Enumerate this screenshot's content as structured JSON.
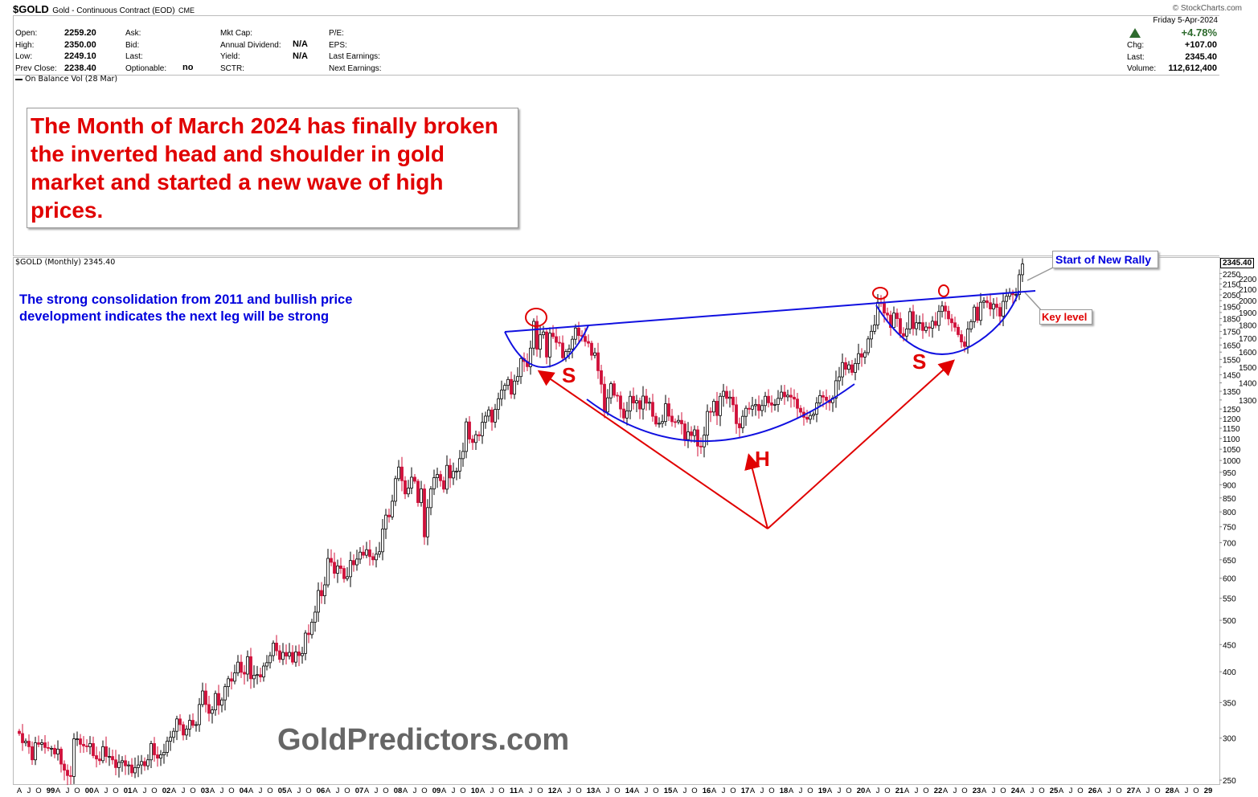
{
  "header": {
    "symbol": "$GOLD",
    "name": "Gold - Continuous Contract (EOD)",
    "exchange": "CME",
    "copyright": "© StockCharts.com",
    "open_label": "Open:",
    "open": "2259.20",
    "high_label": "High:",
    "high": "2350.00",
    "low_label": "Low:",
    "low": "2249.10",
    "prev_label": "Prev Close:",
    "prev": "2238.40",
    "ask_label": "Ask:",
    "bid_label": "Bid:",
    "last_label2": "Last:",
    "optionable_label": "Optionable:",
    "optionable": "no",
    "mktcap_label": "Mkt Cap:",
    "div_label": "Annual Dividend:",
    "div": "N/A",
    "yield_label": "Yield:",
    "yield": "N/A",
    "sctr_label": "SCTR:",
    "pe_label": "P/E:",
    "eps_label": "EPS:",
    "lastearn_label": "Last Earnings:",
    "nextearn_label": "Next Earnings:",
    "date": "Friday  5-Apr-2024",
    "pct": "+4.78%",
    "chg_label": "Chg:",
    "chg": "+107.00",
    "last_label": "Last:",
    "last": "2345.40",
    "vol_label": "Volume:",
    "volume": "112,612,400",
    "obv": "On Balance Vol (28 Mar)",
    "up_color": "#2e6b2e"
  },
  "annotations": {
    "headline": "The Month of March 2024 has finally broken the inverted head and shoulder in gold market and started a new wave of high prices.",
    "note": "The strong consolidation from 2011 and bullish price development indicates the next leg will be strong",
    "rally": "Start of New Rally",
    "key": "Key level",
    "s1": "S",
    "h": "H",
    "s2": "S",
    "watermark": "GoldPredictors.com"
  },
  "chart_data": {
    "type": "candlestick",
    "title": "$GOLD (Monthly) 2345.40",
    "last_label": "2345.40",
    "yscale": "log",
    "ylim": [
      250,
      2400
    ],
    "yticks": [
      250,
      300,
      350,
      400,
      450,
      500,
      550,
      600,
      650,
      700,
      750,
      800,
      850,
      900,
      950,
      1000,
      1050,
      1100,
      1150,
      1200,
      1250,
      1300,
      1350,
      1400,
      1450,
      1500,
      1550,
      1600,
      1650,
      1700,
      1750,
      1800,
      1850,
      1900,
      1950,
      2000,
      2050,
      2100,
      2150,
      2200,
      2250
    ],
    "xlabels_years": [
      "99",
      "00",
      "01",
      "02",
      "03",
      "04",
      "05",
      "06",
      "07",
      "08",
      "09",
      "10",
      "11",
      "12",
      "13",
      "14",
      "15",
      "16",
      "17",
      "18",
      "19",
      "20",
      "21",
      "22",
      "23",
      "24",
      "25",
      "26",
      "27",
      "28",
      "29"
    ],
    "month_labels": [
      "A",
      "J",
      "O"
    ],
    "start": "1998-04",
    "closes": [
      306,
      294,
      296,
      289,
      273,
      294,
      292,
      294,
      288,
      287,
      287,
      280,
      286,
      268,
      261,
      255,
      254,
      299,
      299,
      292,
      290,
      289,
      293,
      278,
      274,
      272,
      289,
      277,
      277,
      273,
      264,
      270,
      272,
      266,
      267,
      258,
      264,
      267,
      271,
      266,
      273,
      293,
      279,
      275,
      279,
      282,
      296,
      301,
      309,
      326,
      318,
      304,
      312,
      324,
      317,
      318,
      347,
      368,
      347,
      334,
      339,
      364,
      346,
      354,
      375,
      388,
      384,
      398,
      417,
      399,
      396,
      427,
      388,
      394,
      395,
      391,
      410,
      416,
      429,
      453,
      438,
      422,
      435,
      428,
      435,
      417,
      436,
      429,
      433,
      473,
      470,
      496,
      518,
      569,
      556,
      583,
      654,
      643,
      613,
      633,
      626,
      599,
      604,
      648,
      636,
      652,
      672,
      663,
      679,
      659,
      650,
      666,
      673,
      743,
      789,
      783,
      838,
      924,
      972,
      916,
      865,
      887,
      930,
      914,
      833,
      884,
      718,
      815,
      884,
      928,
      941,
      916,
      883,
      979,
      927,
      954,
      955,
      1008,
      1040,
      1182,
      1097,
      1081,
      1118,
      1113,
      1180,
      1212,
      1245,
      1181,
      1248,
      1307,
      1357,
      1385,
      1421,
      1333,
      1411,
      1439,
      1556,
      1536,
      1502,
      1628,
      1828,
      1620,
      1725,
      1746,
      1566,
      1737,
      1711,
      1669,
      1664,
      1561,
      1604,
      1622,
      1692,
      1776,
      1719,
      1713,
      1675,
      1663,
      1578,
      1595,
      1476,
      1392,
      1234,
      1312,
      1395,
      1327,
      1323,
      1250,
      1202,
      1240,
      1321,
      1283,
      1296,
      1250,
      1322,
      1282,
      1287,
      1211,
      1171,
      1175,
      1184,
      1279,
      1212,
      1183,
      1182,
      1190,
      1172,
      1095,
      1132,
      1114,
      1142,
      1064,
      1061,
      1116,
      1237,
      1234,
      1293,
      1215,
      1321,
      1350,
      1309,
      1316,
      1273,
      1173,
      1152,
      1211,
      1254,
      1249,
      1268,
      1275,
      1242,
      1269,
      1321,
      1284,
      1271,
      1275,
      1309,
      1345,
      1318,
      1327,
      1316,
      1305,
      1254,
      1233,
      1206,
      1196,
      1215,
      1222,
      1283,
      1325,
      1316,
      1298,
      1285,
      1311,
      1413,
      1437,
      1529,
      1485,
      1514,
      1465,
      1523,
      1589,
      1566,
      1596,
      1694,
      1751,
      1800,
      1986,
      1975,
      1895,
      1879,
      1780,
      1895,
      1850,
      1734,
      1715,
      1769,
      1907,
      1771,
      1817,
      1818,
      1757,
      1784,
      1775,
      1829,
      1796,
      1908,
      1954,
      1911,
      1848,
      1817,
      1782,
      1726,
      1672,
      1640,
      1768,
      1826,
      1945,
      1836,
      1986,
      1999,
      1982,
      1929,
      1970,
      1942,
      1870,
      1994,
      2038,
      2072,
      2052,
      2054,
      2238,
      2345
    ],
    "up_color": "#000000",
    "down_color": "#d0103a"
  }
}
